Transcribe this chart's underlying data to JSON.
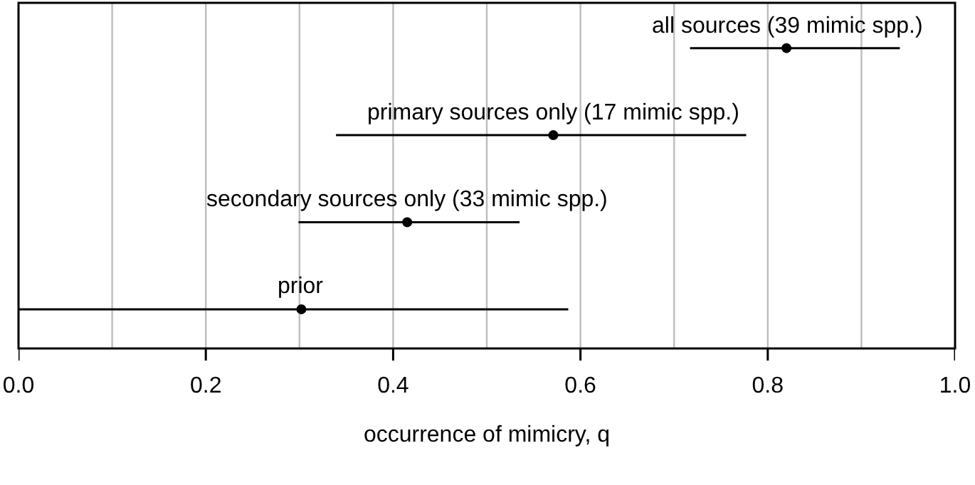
{
  "chart_data": {
    "type": "scatter",
    "orientation": "horizontal",
    "xlabel": "occurrence of mimicry, q",
    "categories": [
      "all sources (39 mimic spp.)",
      "primary sources only (17 mimic spp.)",
      "secondary sources only (33 mimic spp.)",
      "prior"
    ],
    "values": [
      0.82,
      0.571,
      0.415,
      0.302
    ],
    "errors": [
      [
        0.717,
        0.941
      ],
      [
        0.339,
        0.777
      ],
      [
        0.299,
        0.535
      ],
      [
        0,
        0.587
      ]
    ],
    "color": "#000000",
    "marker": "circle",
    "xlim": [
      0,
      1
    ],
    "xticks": [
      {
        "value": 0,
        "label": "0.0"
      },
      {
        "value": 0.1,
        "label": null
      },
      {
        "value": 0.2,
        "label": "0.2"
      },
      {
        "value": 0.3,
        "label": null
      },
      {
        "value": 0.4,
        "label": "0.4"
      },
      {
        "value": 0.5,
        "label": null
      },
      {
        "value": 0.6,
        "label": "0.6"
      },
      {
        "value": 0.7,
        "label": null
      },
      {
        "value": 0.8,
        "label": "0.8"
      },
      {
        "value": 0.9,
        "label": null
      },
      {
        "value": 1,
        "label": "1.0"
      }
    ],
    "grid": "x",
    "tick_labels": "x"
  }
}
